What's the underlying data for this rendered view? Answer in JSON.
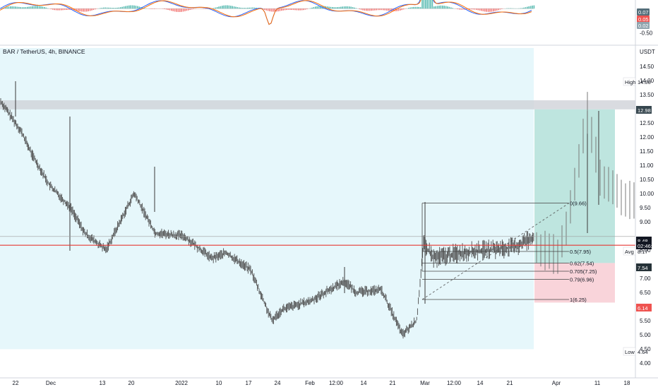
{
  "symbol_title": "BAR / TetherUS, 4h, BINANCE",
  "currency": "USDT",
  "colors": {
    "up": "#26a69a",
    "down": "#ef5350",
    "candle": "#4a4a4a",
    "macd_line": "#2962ff",
    "signal_line": "#ff6d00",
    "support_line": "#e53935",
    "background_zone": "#e6f7fb",
    "resistance_zone": "#cfd2d8",
    "profit_zone": "#a8dcd4",
    "loss_zone": "#f8cdd3",
    "price_tag": "#131722",
    "target_tag": "#37474f",
    "loss_tag": "#ef5350",
    "stop_tag": "#263238"
  },
  "chart_data": [
    {
      "type": "candlestick",
      "title": "BAR / TetherUS, 4h, BINANCE",
      "ylabel": "USDT",
      "ylim": [
        3.6,
        15.2
      ],
      "y_ticks": [
        "14.50",
        "14.00",
        "13.50",
        "12.50",
        "12.00",
        "11.50",
        "11.00",
        "10.50",
        "10.00",
        "9.50",
        "9.00",
        "8.00",
        "7.00",
        "6.50",
        "6.00",
        "5.50",
        "5.00",
        "4.50",
        "4.00"
      ],
      "x_ticks": [
        "22",
        "Dec",
        "13",
        "20",
        "2022",
        "10",
        "17",
        "24",
        "Feb",
        "12:00",
        "14",
        "21",
        "Mar",
        "12:00",
        "14",
        "21",
        "Apr",
        "11",
        "18"
      ],
      "close_path": [
        {
          "x": "22",
          "y": 13.3
        },
        {
          "x": "Dec",
          "y": 12.2
        },
        {
          "x": "Dec",
          "y": 11.4
        },
        {
          "x": "Dec",
          "y": 10.3
        },
        {
          "x": "13",
          "y": 9.5
        },
        {
          "x": "13",
          "y": 8.6
        },
        {
          "x": "20",
          "y": 8.0
        },
        {
          "x": "20",
          "y": 10.0
        },
        {
          "x": "2022",
          "y": 8.6
        },
        {
          "x": "2022",
          "y": 8.5
        },
        {
          "x": "10",
          "y": 7.7
        },
        {
          "x": "10",
          "y": 7.9
        },
        {
          "x": "17",
          "y": 7.3
        },
        {
          "x": "24",
          "y": 5.5
        },
        {
          "x": "24",
          "y": 5.9
        },
        {
          "x": "Feb",
          "y": 6.2
        },
        {
          "x": "12:00",
          "y": 6.9
        },
        {
          "x": "12:00",
          "y": 6.5
        },
        {
          "x": "14",
          "y": 6.6
        },
        {
          "x": "21",
          "y": 5.0
        },
        {
          "x": "21",
          "y": 5.5
        },
        {
          "x": "Mar",
          "y": 8.2
        },
        {
          "x": "Mar",
          "y": 7.7
        },
        {
          "x": "12:00",
          "y": 7.9
        },
        {
          "x": "14",
          "y": 8.0
        },
        {
          "x": "21",
          "y": 8.1
        },
        {
          "x": "21",
          "y": 8.48
        }
      ],
      "projection_path": [
        {
          "x": "21",
          "y": 8.1
        },
        {
          "x": "Apr",
          "y": 7.7
        },
        {
          "x": "Apr",
          "y": 9.0
        },
        {
          "x": "11",
          "y": 12.8
        },
        {
          "x": "11",
          "y": 10.5
        },
        {
          "x": "18",
          "y": 9.6
        }
      ],
      "resistance_zone": [
        12.98,
        13.3
      ],
      "support_level": 8.17,
      "trade_setup": {
        "target": 12.98,
        "entry": 7.54,
        "stop": 6.14
      },
      "fibonacci": [
        {
          "label": "0(9.66)",
          "value": 9.66
        },
        {
          "label": "0.5(7.95)",
          "value": 7.95
        },
        {
          "label": "0.62(7.54)",
          "value": 7.54
        },
        {
          "label": "0.705(7.25)",
          "value": 7.25
        },
        {
          "label": "0.79(6.96)",
          "value": 6.96
        },
        {
          "label": "1(6.25)",
          "value": 6.25
        }
      ],
      "price_tags": [
        {
          "label": "High",
          "value": "14.00"
        },
        {
          "label": "",
          "value": "12.98"
        },
        {
          "label": "",
          "value": "8.48"
        },
        {
          "label": "",
          "value": "02:46:19"
        },
        {
          "label": "Avg",
          "value": "8.17"
        },
        {
          "label": "",
          "value": "7.54"
        },
        {
          "label": "",
          "value": "6.14"
        },
        {
          "label": "Low",
          "value": "4.64"
        }
      ]
    },
    {
      "type": "bar",
      "title": "",
      "ylim": [
        -0.7,
        0.12
      ],
      "y_ticks": [
        "0.07",
        "0.05",
        "0.02",
        "-0.50"
      ],
      "series": [
        {
          "values": [
            0.07
          ]
        },
        {
          "values": [
            0.05
          ]
        },
        {
          "values": [
            0.02
          ]
        }
      ]
    }
  ]
}
